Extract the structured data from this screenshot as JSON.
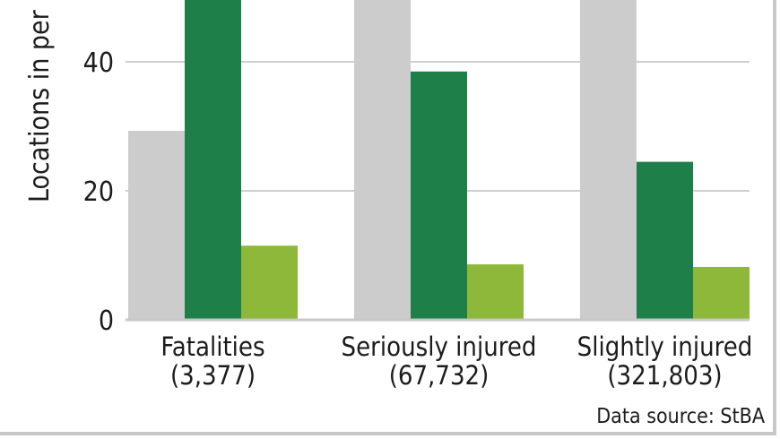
{
  "chart_data": {
    "type": "bar",
    "ylabel": "Locations in per",
    "ylim": [
      0,
      50
    ],
    "yticks": [
      0,
      20,
      40
    ],
    "grid": true,
    "categories": [
      {
        "label": "Fatalities",
        "count": "(3,377)"
      },
      {
        "label": "Seriously injured",
        "count": "(67,732)"
      },
      {
        "label": "Slightly injured",
        "count": "(321,803)"
      }
    ],
    "series": [
      {
        "color": "#cccccc",
        "values": [
          29.3,
          50.0,
          50.0
        ]
      },
      {
        "color": "#1f7f49",
        "values": [
          50.0,
          38.5,
          24.5
        ]
      },
      {
        "color": "#8db83a",
        "values": [
          11.5,
          8.6,
          8.2
        ]
      }
    ],
    "source": "Data source: StBA"
  }
}
